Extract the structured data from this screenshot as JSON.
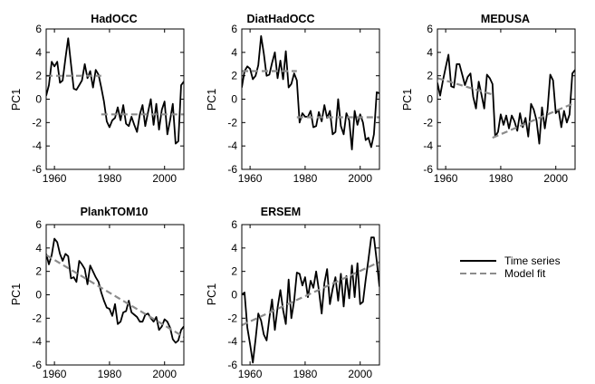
{
  "legend": {
    "entries": [
      {
        "label": "Time series",
        "color": "#000000",
        "style": "solid"
      },
      {
        "label": "Model fit",
        "color": "#8c8c8c",
        "style": "dashed"
      }
    ]
  },
  "chart_data": [
    {
      "type": "line",
      "title": "HadOCC",
      "ylabel": "PC1",
      "xlim": [
        1957,
        2007
      ],
      "ylim": [
        -6,
        6
      ],
      "xticks": [
        1960,
        1980,
        2000
      ],
      "yticks": [
        -6,
        -4,
        -2,
        0,
        2,
        4,
        6
      ],
      "series": [
        {
          "role": "time-series",
          "x": [
            1957,
            1958,
            1959,
            1960,
            1961,
            1962,
            1963,
            1964,
            1965,
            1966,
            1967,
            1968,
            1969,
            1970,
            1971,
            1972,
            1973,
            1974,
            1975,
            1976,
            1977,
            1978,
            1979,
            1980,
            1981,
            1982,
            1983,
            1984,
            1985,
            1986,
            1987,
            1988,
            1989,
            1990,
            1991,
            1992,
            1993,
            1994,
            1995,
            1996,
            1997,
            1998,
            1999,
            2000,
            2001,
            2002,
            2003,
            2004,
            2005,
            2006,
            2007
          ],
          "y": [
            0.3,
            1.2,
            3.2,
            2.8,
            3.2,
            1.4,
            1.6,
            3.5,
            5.2,
            3.0,
            0.9,
            0.8,
            1.2,
            1.6,
            3.0,
            1.8,
            2.4,
            1.0,
            2.5,
            2.1,
            1.0,
            -0.2,
            -1.9,
            -2.4,
            -1.8,
            -1.6,
            -0.7,
            -1.8,
            -0.5,
            -2.1,
            -2.3,
            -1.5,
            -2.2,
            -2.8,
            -1.3,
            -0.5,
            -2.3,
            -1.1,
            0.0,
            -2.2,
            -0.4,
            -2.6,
            -0.9,
            -0.2,
            -3.0,
            -1.8,
            -0.4,
            -3.8,
            -3.6,
            1.2,
            1.5
          ]
        },
        {
          "role": "model-fit",
          "segments": [
            {
              "x": [
                1957,
                1977
              ],
              "y": [
                2.0,
                2.0
              ]
            },
            {
              "x": [
                1977,
                2007
              ],
              "y": [
                -1.3,
                -1.3
              ]
            }
          ]
        }
      ]
    },
    {
      "type": "line",
      "title": "DiatHadOCC",
      "ylabel": "PC1",
      "xlim": [
        1957,
        2007
      ],
      "ylim": [
        -6,
        6
      ],
      "xticks": [
        1960,
        1980,
        2000
      ],
      "yticks": [
        -6,
        -4,
        -2,
        0,
        2,
        4,
        6
      ],
      "series": [
        {
          "role": "time-series",
          "x": [
            1957,
            1958,
            1959,
            1960,
            1961,
            1962,
            1963,
            1964,
            1965,
            1966,
            1967,
            1968,
            1969,
            1970,
            1971,
            1972,
            1973,
            1974,
            1975,
            1976,
            1977,
            1978,
            1979,
            1980,
            1981,
            1982,
            1983,
            1984,
            1985,
            1986,
            1987,
            1988,
            1989,
            1990,
            1991,
            1992,
            1993,
            1994,
            1995,
            1996,
            1997,
            1998,
            1999,
            2000,
            2001,
            2002,
            2003,
            2004,
            2005,
            2006,
            2007
          ],
          "y": [
            1.0,
            2.4,
            2.8,
            2.6,
            1.7,
            2.0,
            2.9,
            5.4,
            3.9,
            2.0,
            2.1,
            3.1,
            4.0,
            1.8,
            3.3,
            1.7,
            4.1,
            1.0,
            1.3,
            2.2,
            1.6,
            -2.0,
            -1.2,
            -1.5,
            -1.5,
            -1.0,
            -2.4,
            -2.3,
            -1.1,
            -1.9,
            -0.5,
            -1.6,
            -1.0,
            -3.0,
            -2.8,
            0.0,
            -2.3,
            -3.0,
            -1.2,
            -1.8,
            -4.3,
            -1.0,
            -2.2,
            -1.3,
            -2.0,
            -3.5,
            -3.3,
            -4.1,
            -3.0,
            0.6,
            0.5
          ]
        },
        {
          "role": "model-fit",
          "segments": [
            {
              "x": [
                1957,
                1977
              ],
              "y": [
                2.4,
                2.4
              ]
            },
            {
              "x": [
                1977,
                2007
              ],
              "y": [
                -1.55,
                -1.55
              ]
            }
          ]
        }
      ]
    },
    {
      "type": "line",
      "title": "MEDUSA",
      "ylabel": "PC1",
      "xlim": [
        1957,
        2007
      ],
      "ylim": [
        -6,
        6
      ],
      "xticks": [
        1960,
        1980,
        2000
      ],
      "yticks": [
        -6,
        -4,
        -2,
        0,
        2,
        4,
        6
      ],
      "series": [
        {
          "role": "time-series",
          "x": [
            1957,
            1958,
            1959,
            1960,
            1961,
            1962,
            1963,
            1964,
            1965,
            1966,
            1967,
            1968,
            1969,
            1970,
            1971,
            1972,
            1973,
            1974,
            1975,
            1976,
            1977,
            1978,
            1979,
            1980,
            1981,
            1982,
            1983,
            1984,
            1985,
            1986,
            1987,
            1988,
            1989,
            1990,
            1991,
            1992,
            1993,
            1994,
            1995,
            1996,
            1997,
            1998,
            1999,
            2000,
            2001,
            2002,
            2003,
            2004,
            2005,
            2006,
            2007
          ],
          "y": [
            1.4,
            0.3,
            1.6,
            2.7,
            3.8,
            1.1,
            1.0,
            3.0,
            3.0,
            2.1,
            1.2,
            1.9,
            2.2,
            0.2,
            -0.8,
            1.5,
            0.4,
            -0.8,
            2.1,
            1.8,
            1.3,
            -3.2,
            -2.8,
            -1.3,
            -2.2,
            -1.4,
            -2.5,
            -1.4,
            -1.9,
            -2.7,
            -1.2,
            -2.4,
            -1.6,
            -3.2,
            -0.4,
            -0.9,
            -1.8,
            -3.8,
            -0.7,
            -2.5,
            -0.9,
            2.1,
            1.6,
            -1.2,
            -0.9,
            -2.4,
            -1.0,
            -2.0,
            -1.3,
            2.2,
            2.5
          ]
        },
        {
          "role": "model-fit",
          "segments": [
            {
              "x": [
                1957,
                1977
              ],
              "y": [
                1.8,
                0.4
              ]
            },
            {
              "x": [
                1977,
                2007
              ],
              "y": [
                -3.3,
                -0.3
              ]
            }
          ]
        }
      ]
    },
    {
      "type": "line",
      "title": "PlankTOM10",
      "ylabel": "PC1",
      "xlim": [
        1957,
        2007
      ],
      "ylim": [
        -6,
        6
      ],
      "xticks": [
        1960,
        1980,
        2000
      ],
      "yticks": [
        -6,
        -4,
        -2,
        0,
        2,
        4,
        6
      ],
      "series": [
        {
          "role": "time-series",
          "x": [
            1957,
            1958,
            1959,
            1960,
            1961,
            1962,
            1963,
            1964,
            1965,
            1966,
            1967,
            1968,
            1969,
            1970,
            1971,
            1972,
            1973,
            1974,
            1975,
            1976,
            1977,
            1978,
            1979,
            1980,
            1981,
            1982,
            1983,
            1984,
            1985,
            1986,
            1987,
            1988,
            1989,
            1990,
            1991,
            1992,
            1993,
            1994,
            1995,
            1996,
            1997,
            1998,
            1999,
            2000,
            2001,
            2002,
            2003,
            2004,
            2005,
            2006,
            2007
          ],
          "y": [
            3.5,
            2.6,
            3.4,
            4.8,
            4.5,
            3.5,
            2.9,
            3.5,
            3.3,
            1.4,
            1.5,
            1.1,
            2.9,
            2.6,
            2.2,
            0.9,
            2.5,
            2.0,
            1.5,
            1.1,
            0.2,
            -0.5,
            -1.1,
            -1.2,
            -1.8,
            -0.8,
            -2.5,
            -2.3,
            -1.5,
            -1.4,
            -0.5,
            -1.5,
            -1.7,
            -1.9,
            -2.3,
            -2.3,
            -1.7,
            -1.6,
            -2.0,
            -2.3,
            -1.9,
            -3.0,
            -2.7,
            -2.1,
            -2.3,
            -2.8,
            -3.8,
            -4.1,
            -3.9,
            -3.0,
            -2.7
          ]
        },
        {
          "role": "model-fit",
          "segments": [
            {
              "x": [
                1957,
                2007
              ],
              "y": [
                3.4,
                -3.6
              ]
            }
          ]
        }
      ]
    },
    {
      "type": "line",
      "title": "ERSEM",
      "ylabel": "PC1",
      "xlim": [
        1957,
        2007
      ],
      "ylim": [
        -6,
        6
      ],
      "xticks": [
        1960,
        1980,
        2000
      ],
      "yticks": [
        -6,
        -4,
        -2,
        0,
        2,
        4,
        6
      ],
      "series": [
        {
          "role": "time-series",
          "x": [
            1957,
            1958,
            1959,
            1960,
            1961,
            1962,
            1963,
            1964,
            1965,
            1966,
            1967,
            1968,
            1969,
            1970,
            1971,
            1972,
            1973,
            1974,
            1975,
            1976,
            1977,
            1978,
            1979,
            1980,
            1981,
            1982,
            1983,
            1984,
            1985,
            1986,
            1987,
            1988,
            1989,
            1990,
            1991,
            1992,
            1993,
            1994,
            1995,
            1996,
            1997,
            1998,
            1999,
            2000,
            2001,
            2002,
            2003,
            2004,
            2005,
            2006,
            2007
          ],
          "y": [
            0.0,
            0.2,
            -2.8,
            -4.2,
            -5.8,
            -3.8,
            -1.6,
            -2.2,
            -3.4,
            -3.9,
            -2.0,
            -0.4,
            -3.0,
            -1.1,
            0.4,
            -1.3,
            -2.5,
            1.3,
            -2.0,
            -0.5,
            1.9,
            1.8,
            0.8,
            1.5,
            -0.2,
            1.2,
            0.6,
            2.0,
            0.4,
            -1.6,
            1.0,
            2.2,
            -0.8,
            0.5,
            1.5,
            -0.5,
            1.8,
            -1.0,
            1.6,
            -0.3,
            2.5,
            -0.2,
            2.7,
            -0.8,
            -0.6,
            1.3,
            3.0,
            4.9,
            4.9,
            2.9,
            0.7
          ]
        },
        {
          "role": "model-fit",
          "segments": [
            {
              "x": [
                1957,
                2007
              ],
              "y": [
                -2.6,
                2.8
              ]
            }
          ]
        }
      ]
    }
  ]
}
